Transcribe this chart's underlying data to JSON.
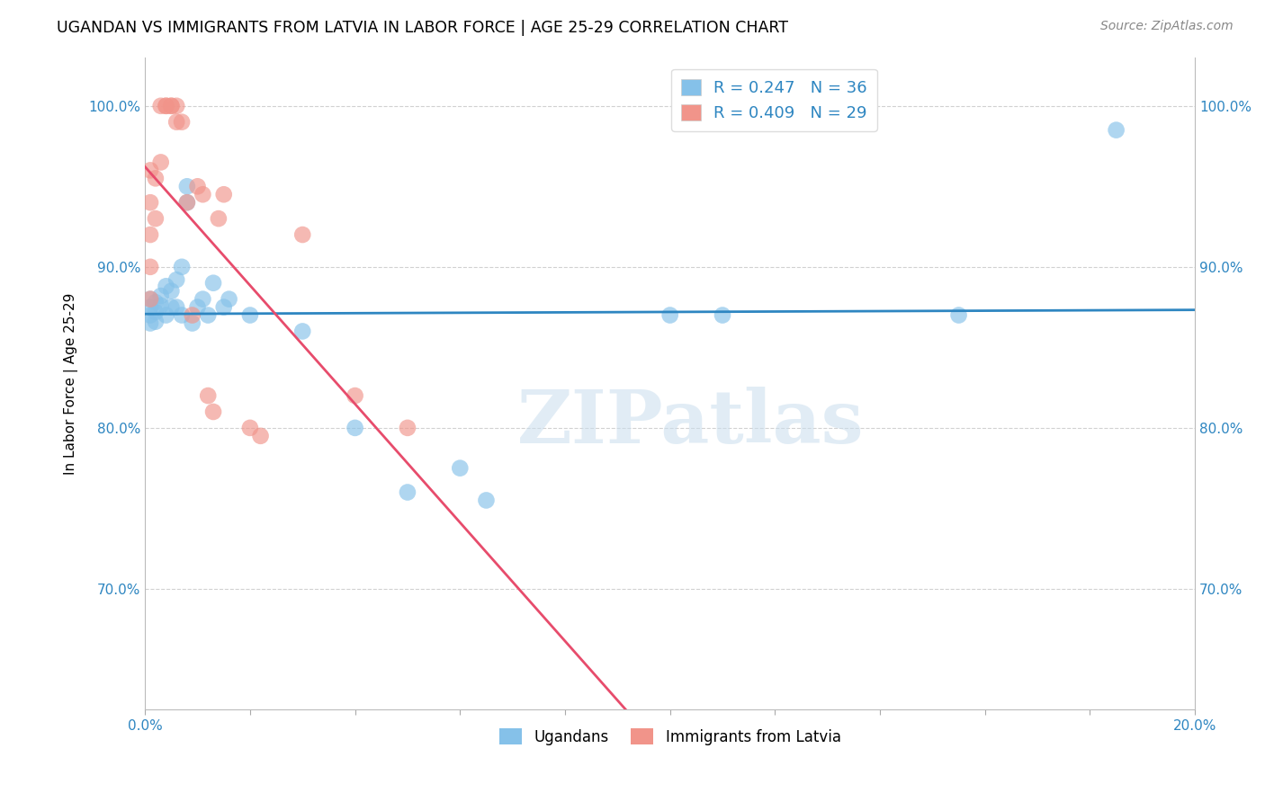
{
  "title": "UGANDAN VS IMMIGRANTS FROM LATVIA IN LABOR FORCE | AGE 25-29 CORRELATION CHART",
  "source": "Source: ZipAtlas.com",
  "ylabel": "In Labor Force | Age 25-29",
  "watermark": "ZIPatlas",
  "xlim": [
    0.0,
    0.2
  ],
  "ylim": [
    0.625,
    1.03
  ],
  "yticks": [
    0.7,
    0.8,
    0.9,
    1.0
  ],
  "ytick_labels": [
    "70.0%",
    "80.0%",
    "90.0%",
    "100.0%"
  ],
  "xticks": [
    0.0,
    0.02,
    0.04,
    0.06,
    0.08,
    0.1,
    0.12,
    0.14,
    0.16,
    0.18,
    0.2
  ],
  "xtick_labels": [
    "0.0%",
    "",
    "",
    "",
    "",
    "",
    "",
    "",
    "",
    "",
    "20.0%"
  ],
  "ugandan_color": "#85C1E9",
  "latvian_color": "#F1948A",
  "ugandan_R": 0.247,
  "ugandan_N": 36,
  "latvian_R": 0.409,
  "latvian_N": 29,
  "ugandan_line_color": "#2E86C1",
  "latvian_line_color": "#E74C6C",
  "legend_label_ugandan": "Ugandans",
  "legend_label_latvian": "Immigrants from Latvia",
  "ugandan_x": [
    0.001,
    0.001,
    0.001,
    0.001,
    0.002,
    0.002,
    0.002,
    0.003,
    0.003,
    0.004,
    0.004,
    0.005,
    0.005,
    0.006,
    0.006,
    0.007,
    0.007,
    0.008,
    0.008,
    0.009,
    0.01,
    0.011,
    0.012,
    0.013,
    0.015,
    0.016,
    0.02,
    0.03,
    0.04,
    0.05,
    0.06,
    0.065,
    0.1,
    0.11,
    0.155,
    0.185
  ],
  "ugandan_y": [
    0.88,
    0.875,
    0.87,
    0.865,
    0.878,
    0.872,
    0.866,
    0.882,
    0.876,
    0.888,
    0.87,
    0.885,
    0.875,
    0.892,
    0.875,
    0.9,
    0.87,
    0.95,
    0.94,
    0.865,
    0.875,
    0.88,
    0.87,
    0.89,
    0.875,
    0.88,
    0.87,
    0.86,
    0.8,
    0.76,
    0.775,
    0.755,
    0.87,
    0.87,
    0.87,
    0.985
  ],
  "latvian_x": [
    0.001,
    0.001,
    0.001,
    0.001,
    0.001,
    0.002,
    0.002,
    0.003,
    0.003,
    0.004,
    0.004,
    0.005,
    0.005,
    0.006,
    0.006,
    0.007,
    0.008,
    0.009,
    0.01,
    0.011,
    0.012,
    0.013,
    0.014,
    0.015,
    0.02,
    0.022,
    0.03,
    0.04,
    0.05
  ],
  "latvian_y": [
    0.88,
    0.9,
    0.92,
    0.94,
    0.96,
    0.93,
    0.955,
    0.965,
    1.0,
    1.0,
    1.0,
    1.0,
    1.0,
    0.99,
    1.0,
    0.99,
    0.94,
    0.87,
    0.95,
    0.945,
    0.82,
    0.81,
    0.93,
    0.945,
    0.8,
    0.795,
    0.92,
    0.82,
    0.8
  ]
}
